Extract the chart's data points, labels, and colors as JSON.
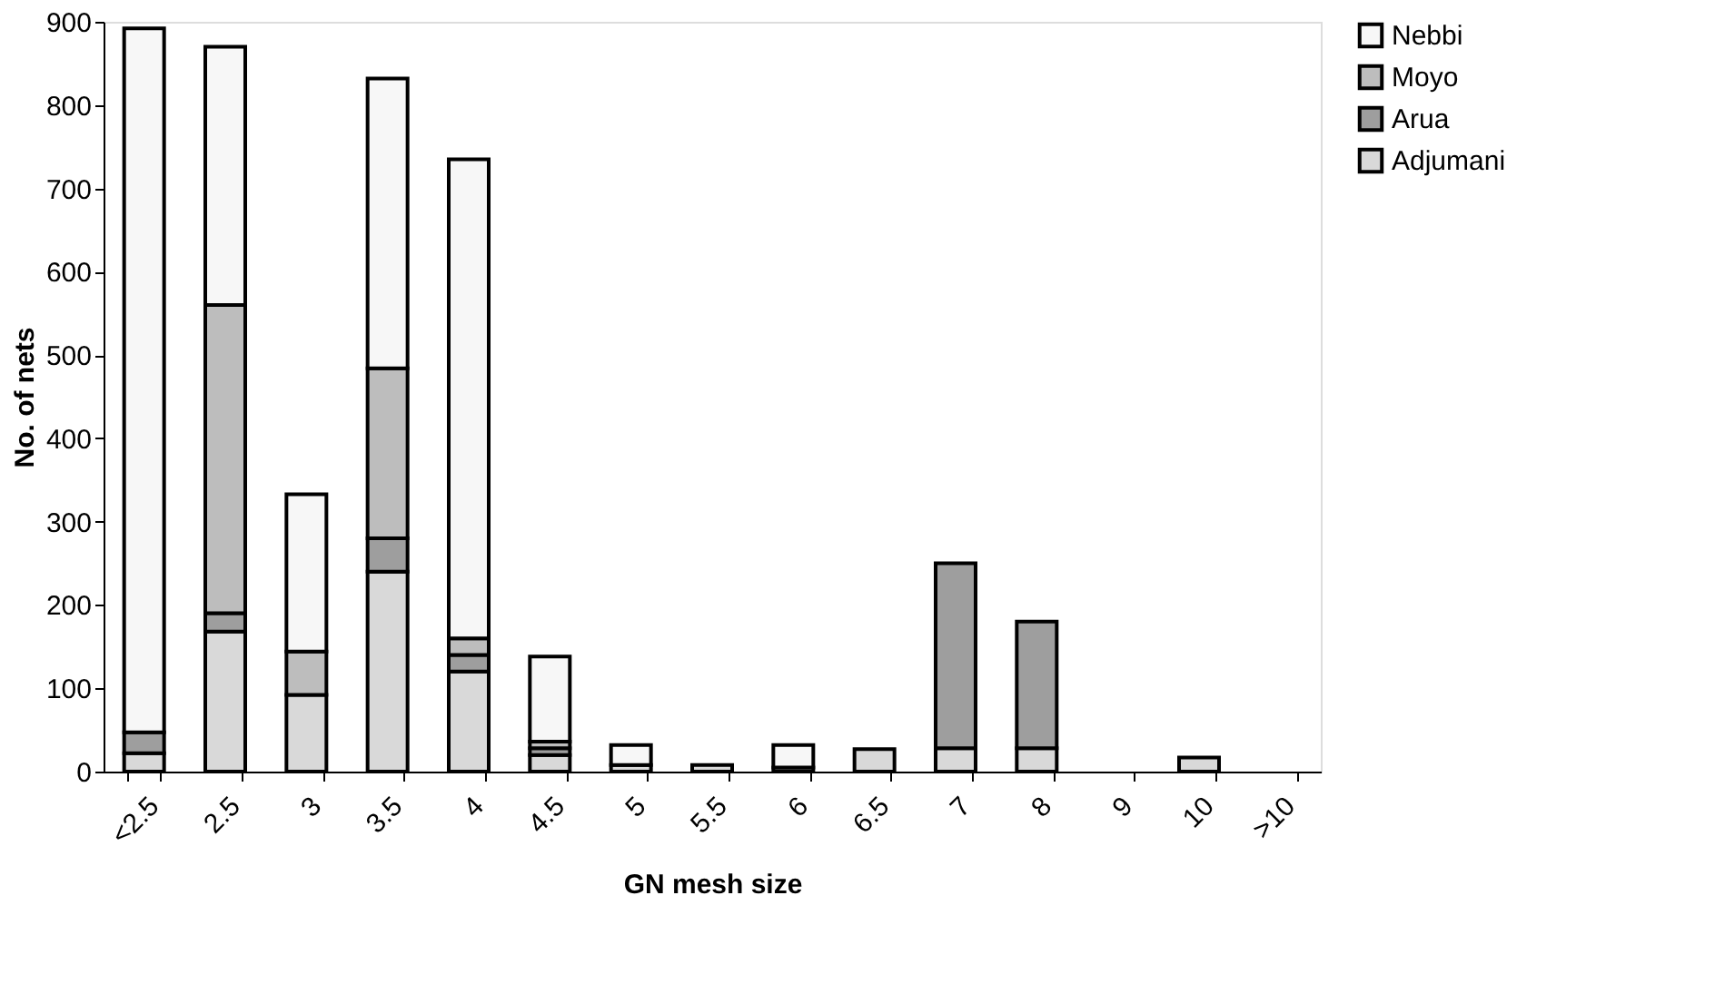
{
  "chart_data": {
    "type": "bar",
    "stacked": true,
    "xlabel": "GN mesh size",
    "ylabel": "No. of nets",
    "categories": [
      "<2.5",
      "2.5",
      "3",
      "3.5",
      "4",
      "4.5",
      "5",
      "5.5",
      "6",
      "6.5",
      "7",
      "8",
      "9",
      "10",
      ">10"
    ],
    "series": [
      {
        "name": "Adjumani",
        "color": "#d9d9d9",
        "values": [
          22,
          168,
          92,
          240,
          120,
          20,
          8,
          8,
          5,
          27,
          28,
          28,
          0,
          17,
          0
        ]
      },
      {
        "name": "Arua",
        "color": "#9e9e9e",
        "values": [
          25,
          22,
          null,
          40,
          20,
          8,
          null,
          0,
          null,
          0,
          222,
          152,
          0,
          0,
          0
        ]
      },
      {
        "name": "Moyo",
        "color": "#bdbdbd",
        "values": [
          null,
          370,
          52,
          204,
          20,
          8,
          0,
          0,
          0,
          0,
          0,
          0,
          0,
          0,
          0
        ]
      },
      {
        "name": "Nebbi",
        "color": "#f7f7f7",
        "values": [
          845,
          310,
          189,
          348,
          575,
          102,
          24,
          0,
          27,
          0,
          0,
          0,
          0,
          0,
          0
        ]
      }
    ],
    "ylim": [
      0,
      900
    ],
    "yticks": [
      0,
      100,
      200,
      300,
      400,
      500,
      600,
      700,
      800,
      900
    ],
    "grid": false,
    "legend": "right"
  }
}
